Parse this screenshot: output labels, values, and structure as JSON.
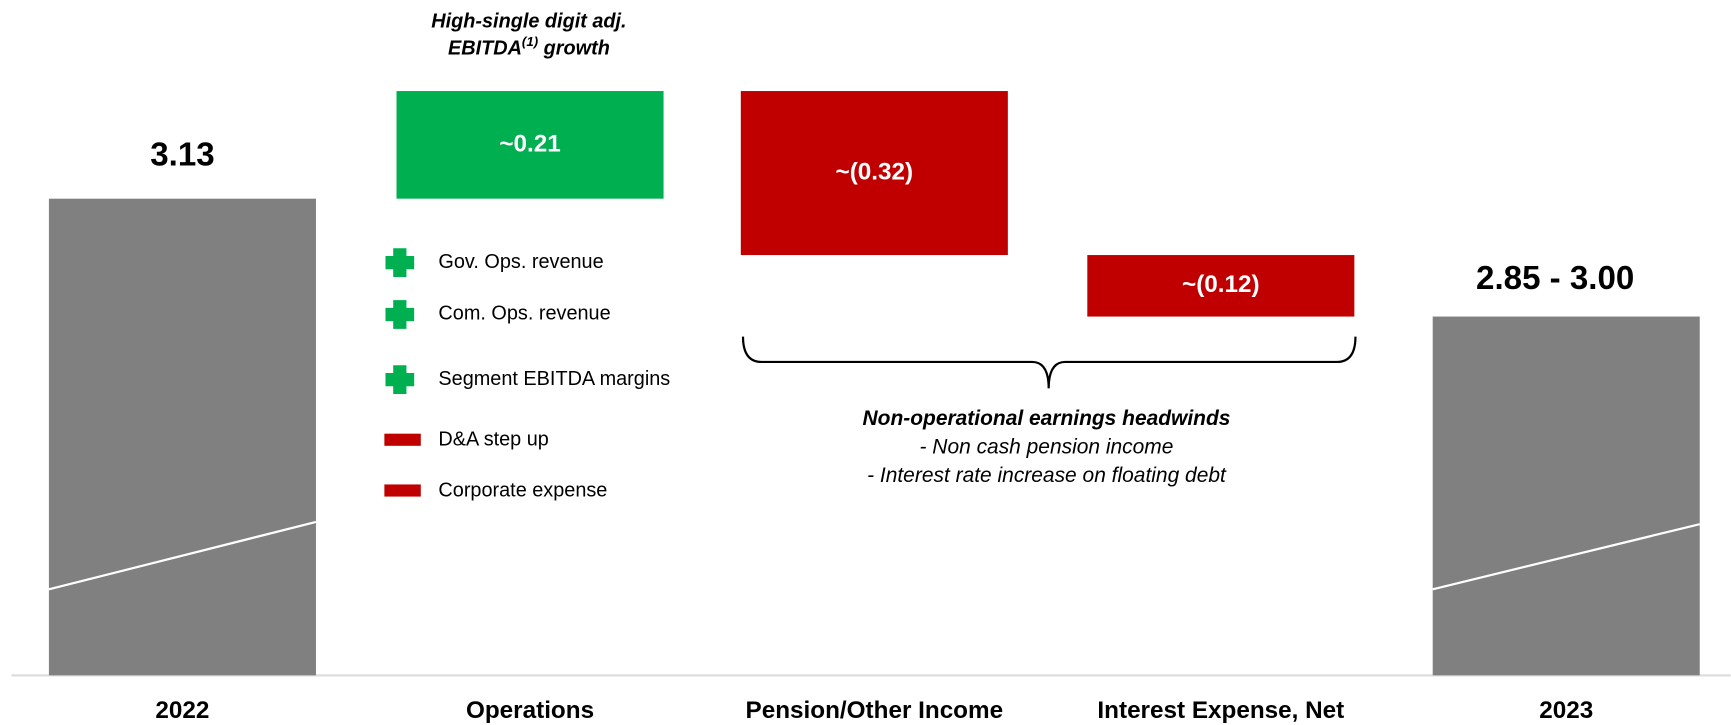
{
  "chart_data": {
    "type": "waterfall",
    "categories": [
      "2022",
      "Operations",
      "Pension/Other Income",
      "Interest Expense, Net",
      "2023"
    ],
    "values": [
      3.13,
      0.21,
      -0.32,
      -0.12,
      null
    ],
    "value_labels": [
      "3.13",
      "~0.21",
      "~(0.32)",
      "~(0.12)",
      null
    ],
    "end_range": {
      "low": 2.85,
      "high": 3.0,
      "label": "2.85 - 3.00"
    },
    "ylim": [
      2.2,
      3.34
    ],
    "colors": {
      "total": "#808080",
      "increase": "#00b050",
      "decrease": "#c00000"
    },
    "annotation": {
      "line1": "High-single digit adj.",
      "line2": "EBITDA",
      "sup": "(1)",
      "line2_end": " growth"
    },
    "drivers": [
      {
        "sign": "+",
        "label": "Gov. Ops. revenue"
      },
      {
        "sign": "+",
        "label": "Com. Ops. revenue"
      },
      {
        "sign": "+",
        "label": "Segment EBITDA margins"
      },
      {
        "sign": "-",
        "label": "D&A step up"
      },
      {
        "sign": "-",
        "label": "Corporate expense"
      }
    ],
    "headwinds": {
      "title": "Non-operational earnings headwinds",
      "items": [
        "- Non cash pension income",
        "- Interest rate increase on floating debt"
      ]
    }
  }
}
